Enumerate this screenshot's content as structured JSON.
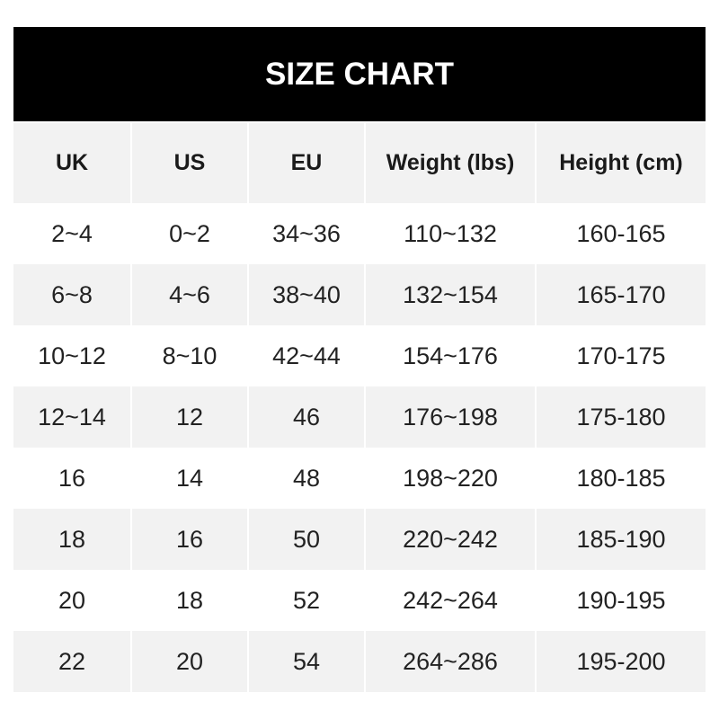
{
  "title": "SIZE CHART",
  "headers": [
    "UK",
    "US",
    "EU",
    "Weight (lbs)",
    "Height (cm)"
  ],
  "rows": [
    [
      "2~4",
      "0~2",
      "34~36",
      "110~132",
      "160-165"
    ],
    [
      "6~8",
      "4~6",
      "38~40",
      "132~154",
      "165-170"
    ],
    [
      "10~12",
      "8~10",
      "42~44",
      "154~176",
      "170-175"
    ],
    [
      "12~14",
      "12",
      "46",
      "176~198",
      "175-180"
    ],
    [
      "16",
      "14",
      "48",
      "198~220",
      "180-185"
    ],
    [
      "18",
      "16",
      "50",
      "220~242",
      "185-190"
    ],
    [
      "20",
      "18",
      "52",
      "242~264",
      "190-195"
    ],
    [
      "22",
      "20",
      "54",
      "264~286",
      "195-200"
    ]
  ]
}
